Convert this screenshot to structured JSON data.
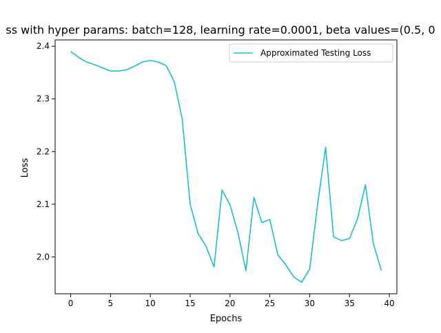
{
  "chart_data": {
    "type": "line",
    "title": "ss with hyper params: batch=128, learning rate=0.0001, beta values=(0.5, 0",
    "xlabel": "Epochs",
    "ylabel": "Loss",
    "xlim": [
      -1.95,
      40.95
    ],
    "ylim": [
      1.93,
      2.412
    ],
    "xticks": [
      0,
      5,
      10,
      15,
      20,
      25,
      30,
      35,
      40
    ],
    "xtick_labels": [
      "0",
      "5",
      "10",
      "15",
      "20",
      "25",
      "30",
      "35",
      "40"
    ],
    "yticks": [
      2.0,
      2.1,
      2.2,
      2.3,
      2.4
    ],
    "ytick_labels": [
      "2.0",
      "2.1",
      "2.2",
      "2.3",
      "2.4"
    ],
    "grid": false,
    "legend_position": "upper-right",
    "x": [
      0,
      1,
      2,
      3,
      4,
      5,
      6,
      7,
      8,
      9,
      10,
      11,
      12,
      13,
      14,
      15,
      16,
      17,
      18,
      19,
      20,
      21,
      22,
      23,
      24,
      25,
      26,
      27,
      28,
      29,
      30,
      31,
      32,
      33,
      34,
      35,
      36,
      37,
      38,
      39
    ],
    "series": [
      {
        "name": "Approximated Testing Loss",
        "color": "#17becf",
        "values": [
          2.39,
          2.379,
          2.37,
          2.365,
          2.359,
          2.353,
          2.353,
          2.355,
          2.362,
          2.37,
          2.373,
          2.37,
          2.363,
          2.333,
          2.262,
          2.1,
          2.044,
          2.02,
          1.981,
          2.127,
          2.099,
          2.046,
          1.974,
          2.113,
          2.065,
          2.071,
          2.004,
          1.985,
          1.962,
          1.952,
          1.977,
          2.1,
          2.208,
          2.038,
          2.031,
          2.035,
          2.072,
          2.137,
          2.025,
          1.974
        ]
      }
    ]
  }
}
